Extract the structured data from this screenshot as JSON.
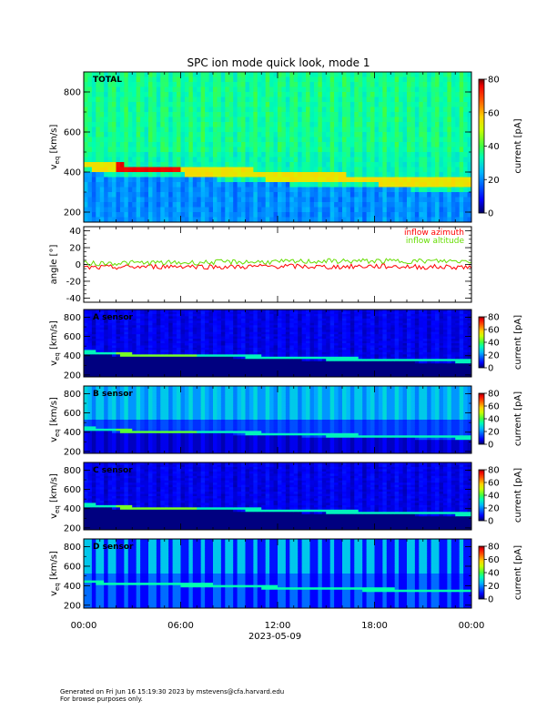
{
  "title": "SPC ion mode quick look, mode 1",
  "footer": {
    "line1": "Generated on Fri Jun 16 15:19:30 2023 by mstevens@cfa.harvard.edu",
    "line2": "For browse purposes only."
  },
  "x_axis": {
    "tick_labels": [
      "00:00",
      "06:00",
      "12:00",
      "18:00",
      "00:00"
    ],
    "date_label": "2023-05-09",
    "range_hours": [
      0,
      24
    ]
  },
  "colorbar": {
    "label": "current [pA]",
    "range": [
      0,
      80
    ],
    "ticks": [
      "0",
      "20",
      "40",
      "60",
      "80"
    ]
  },
  "chart_data": [
    {
      "type": "heatmap",
      "panel": "total",
      "label": "TOTAL",
      "ylabel": "v_eq [km/s]",
      "ylim": [
        150,
        900
      ],
      "yticks": [
        200,
        400,
        600,
        800
      ],
      "x_hours": [
        0,
        24
      ],
      "peak_speed_trace": {
        "hours": [
          0,
          2,
          3,
          6,
          9,
          12,
          15,
          18,
          21,
          24
        ],
        "speed": [
          440,
          420,
          410,
          410,
          400,
          380,
          370,
          360,
          350,
          345
        ]
      },
      "typical_current_pA": [
        20,
        40
      ]
    },
    {
      "type": "line",
      "panel": "angle",
      "ylabel": "angle [°]",
      "ylim": [
        -45,
        45
      ],
      "yticks": [
        -40,
        -20,
        0,
        20,
        40
      ],
      "legend_position": "top-right",
      "series": [
        {
          "name": "inflow azimuth",
          "color": "#ff0000",
          "hours": [
            0,
            3,
            6,
            9,
            12,
            15,
            18,
            21,
            24
          ],
          "values": [
            -4,
            -3,
            -2,
            -3,
            -2,
            -3,
            -2,
            -3,
            -3
          ]
        },
        {
          "name": "inflow altitude",
          "color": "#66dd00",
          "hours": [
            0,
            3,
            6,
            9,
            12,
            15,
            18,
            21,
            24
          ],
          "values": [
            1,
            2,
            2,
            3,
            3,
            4,
            4,
            4,
            4
          ]
        }
      ]
    },
    {
      "type": "heatmap",
      "panel": "sensor-a",
      "label": "A sensor",
      "ylabel": "v_eq [km/s]",
      "ylim": [
        180,
        880
      ],
      "yticks": [
        200,
        400,
        600,
        800
      ],
      "x_hours": [
        0,
        24
      ]
    },
    {
      "type": "heatmap",
      "panel": "sensor-b",
      "label": "B sensor",
      "ylabel": "v_eq [km/s]",
      "ylim": [
        180,
        880
      ],
      "yticks": [
        200,
        400,
        600,
        800
      ],
      "x_hours": [
        0,
        24
      ]
    },
    {
      "type": "heatmap",
      "panel": "sensor-c",
      "label": "C sensor",
      "ylabel": "v_eq [km/s]",
      "ylim": [
        180,
        880
      ],
      "yticks": [
        200,
        400,
        600,
        800
      ],
      "x_hours": [
        0,
        24
      ]
    },
    {
      "type": "heatmap",
      "panel": "sensor-d",
      "label": "D sensor",
      "ylabel": "v_eq [km/s]",
      "ylim": [
        170,
        880
      ],
      "yticks": [
        200,
        400,
        600,
        800
      ],
      "x_hours": [
        0,
        24
      ]
    }
  ]
}
